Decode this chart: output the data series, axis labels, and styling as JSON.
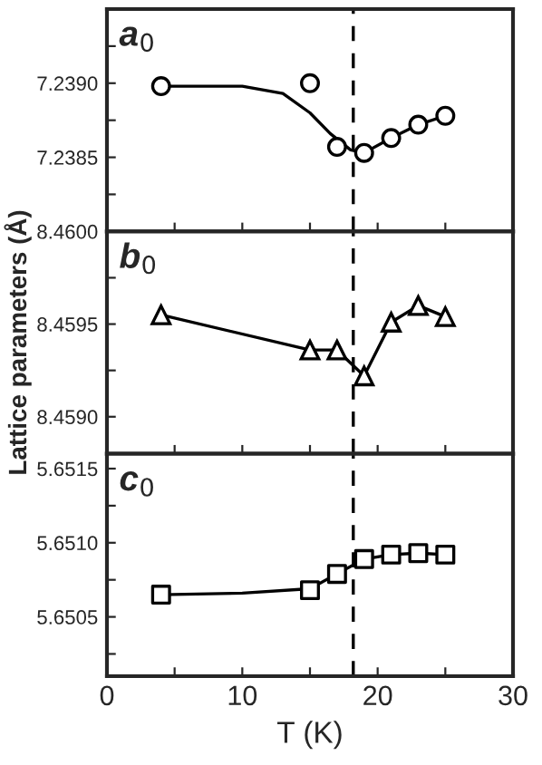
{
  "chart_data": [
    {
      "type": "scatter",
      "annotations": [
        {
          "text": "a$_{0}$"
        }
      ],
      "xlim": [
        0,
        30
      ],
      "ylim": [
        7.238,
        7.2395
      ],
      "xticks": [
        {
          "value": 0,
          "label": null
        },
        {
          "value": 5,
          "label": null
        },
        {
          "value": 10,
          "label": null
        },
        {
          "value": 15,
          "label": null
        },
        {
          "value": 20,
          "label": null
        },
        {
          "value": 25,
          "label": null
        },
        {
          "value": 30,
          "label": null
        }
      ],
      "yticks": [
        {
          "value": 7.2385,
          "label": "7.2385"
        },
        {
          "value": 7.239,
          "label": "7.2390"
        },
        {
          "value": 7.23825,
          "label": null
        },
        {
          "value": 7.23875,
          "label": null
        },
        {
          "value": 7.23925,
          "label": null
        }
      ],
      "tick_labels": "y",
      "grid": false,
      "legend": false,
      "ref_lines": [
        {
          "axis": "x",
          "value": 18.2,
          "line_style": "dashed",
          "color": "#000000"
        }
      ],
      "series": [
        {
          "type": "line",
          "color": "#000000",
          "marker": "none",
          "x": [
            4,
            10,
            13,
            15,
            16.5,
            18,
            19,
            21,
            23,
            25
          ],
          "values": [
            7.23898,
            7.23898,
            7.23893,
            7.2388,
            7.23866,
            7.23855,
            7.23853,
            7.23863,
            7.23872,
            7.23878
          ]
        },
        {
          "color": "#000000",
          "marker": "circle",
          "x": [
            4,
            15,
            17,
            19,
            21,
            23,
            25
          ],
          "values": [
            7.23898,
            7.239,
            7.23857,
            7.23853,
            7.23863,
            7.23872,
            7.23878
          ]
        }
      ]
    },
    {
      "type": "line",
      "annotations": [
        {
          "text": "b$_{0}$"
        }
      ],
      "ylabel": "Lattice parameters (Å)",
      "xlim": [
        0,
        30
      ],
      "ylim": [
        8.4588,
        8.46
      ],
      "xticks": [
        {
          "value": 0,
          "label": null
        },
        {
          "value": 5,
          "label": null
        },
        {
          "value": 10,
          "label": null
        },
        {
          "value": 15,
          "label": null
        },
        {
          "value": 20,
          "label": null
        },
        {
          "value": 25,
          "label": null
        },
        {
          "value": 30,
          "label": null
        }
      ],
      "yticks": [
        {
          "value": 8.459,
          "label": "8.4590"
        },
        {
          "value": 8.4595,
          "label": "8.4595"
        },
        {
          "value": 8.46,
          "label": "8.4600"
        },
        {
          "value": 8.45925,
          "label": null
        },
        {
          "value": 8.45975,
          "label": null
        }
      ],
      "tick_labels": "y",
      "grid": false,
      "legend": false,
      "ref_lines": [
        {
          "axis": "x",
          "value": 18.2,
          "line_style": "dashed",
          "color": "#000000"
        }
      ],
      "series": [
        {
          "color": "#000000",
          "marker": "triangle",
          "x": [
            4,
            15,
            17,
            19,
            21,
            23,
            25
          ],
          "values": [
            8.45955,
            8.45936,
            8.45936,
            8.45922,
            8.45951,
            8.4596,
            8.45954
          ]
        }
      ]
    },
    {
      "type": "scatter",
      "xlabel": "T (K)",
      "xlim": [
        0,
        30
      ],
      "ylim": [
        5.6501,
        5.6516
      ],
      "xticks": [
        0,
        {
          "value": 5,
          "label": null
        },
        10,
        {
          "value": 15,
          "label": null
        },
        20,
        {
          "value": 25,
          "label": null
        },
        30
      ],
      "yticks": [
        {
          "value": 5.6505,
          "label": "5.6505"
        },
        {
          "value": 5.651,
          "label": "5.6510"
        },
        {
          "value": 5.6515,
          "label": "5.6515"
        },
        {
          "value": 5.65025,
          "label": null
        },
        {
          "value": 5.65075,
          "label": null
        },
        {
          "value": 5.65125,
          "label": null
        }
      ],
      "grid": false,
      "legend": false,
      "annotations": [
        {
          "text": "c$_{0}$"
        }
      ],
      "ref_lines": [
        {
          "axis": "x",
          "value": 18.2,
          "line_style": "dashed",
          "color": "#000000"
        }
      ],
      "series": [
        {
          "type": "line",
          "color": "#000000",
          "marker": "none",
          "x": [
            4,
            10,
            15,
            17,
            19,
            21,
            23,
            25
          ],
          "values": [
            5.65065,
            5.65066,
            5.65069,
            5.65079,
            5.65089,
            5.65092,
            5.65093,
            5.65092
          ]
        },
        {
          "color": "#000000",
          "marker": "square",
          "x": [
            4,
            15,
            17,
            19,
            21,
            23,
            25
          ],
          "values": [
            5.65065,
            5.65068,
            5.65079,
            5.65089,
            5.65092,
            5.65093,
            5.65092
          ]
        }
      ]
    }
  ]
}
